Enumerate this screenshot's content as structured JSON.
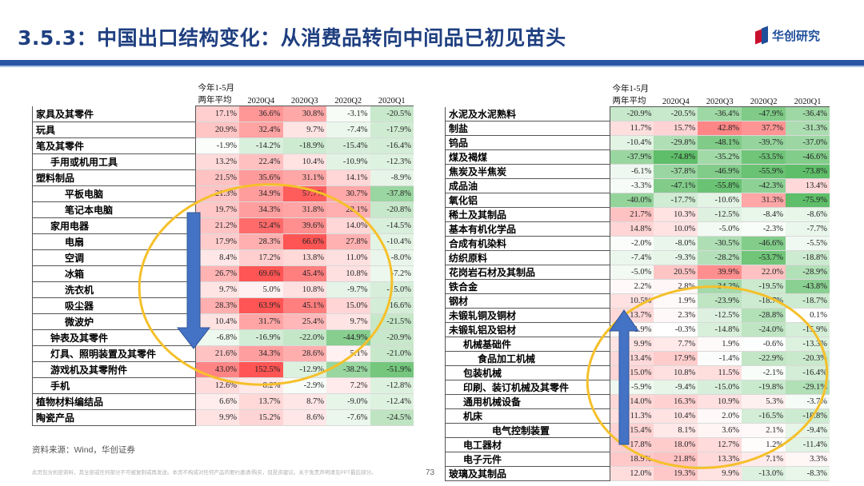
{
  "header": {
    "title": "3.5.3：中国出口结构变化：从消费品转向中间品已初见苗头",
    "logo_text": "华创研究"
  },
  "footer": {
    "source": "资料来源：Wind，华创证券",
    "disclaimer": "此页包含机密资料，其全部或任何部分不可被复制或再发送。本页不构成对任何产品的要约邀请/购买，但投资建议。关于免责声明请见PPT最后部分。",
    "page_number": "73"
  },
  "colors": {
    "title": "#1f3f80",
    "rule": "#2a55a4",
    "red_max": "#f24a4a",
    "green_max": "#56b85c",
    "arrow": "#4472c4",
    "ellipse": "#f5c02a"
  },
  "chart_data": [
    {
      "type": "heatmap",
      "header_row1": "今年1-5月",
      "columns": [
        "两年平均",
        "2020Q4",
        "2020Q3",
        "2020Q2",
        "2020Q1"
      ],
      "rows": [
        {
          "name": "家具及其零件",
          "indent": 0,
          "values": [
            17.1,
            36.6,
            30.8,
            -3.1,
            -20.5
          ]
        },
        {
          "name": "玩具",
          "indent": 0,
          "values": [
            20.9,
            32.4,
            9.7,
            -7.4,
            -17.9
          ]
        },
        {
          "name": "笔及其零件",
          "indent": 0,
          "values": [
            -1.9,
            -14.2,
            -18.9,
            -15.4,
            -16.4
          ]
        },
        {
          "name": "手用或机用工具",
          "indent": 1,
          "values": [
            13.2,
            22.4,
            10.4,
            -10.9,
            -12.3
          ]
        },
        {
          "name": "塑料制品",
          "indent": 0,
          "values": [
            21.5,
            35.6,
            31.1,
            14.1,
            -8.9
          ]
        },
        {
          "name": "平板电脑",
          "indent": 2,
          "values": [
            21.3,
            34.9,
            57.7,
            30.7,
            -37.8
          ]
        },
        {
          "name": "笔记本电脑",
          "indent": 2,
          "values": [
            19.7,
            34.3,
            31.8,
            28.1,
            -20.8
          ]
        },
        {
          "name": "家用电器",
          "indent": 1,
          "values": [
            21.2,
            52.4,
            39.6,
            14.0,
            -14.5
          ]
        },
        {
          "name": "电扇",
          "indent": 2,
          "values": [
            17.9,
            28.3,
            66.6,
            27.8,
            -10.4
          ]
        },
        {
          "name": "空调",
          "indent": 2,
          "values": [
            8.4,
            17.2,
            13.8,
            11.0,
            -8.0
          ]
        },
        {
          "name": "冰箱",
          "indent": 2,
          "values": [
            26.7,
            69.6,
            45.4,
            10.8,
            -7.2
          ]
        },
        {
          "name": "洗衣机",
          "indent": 2,
          "values": [
            9.7,
            5.0,
            10.8,
            -9.7,
            -15.0
          ]
        },
        {
          "name": "吸尘器",
          "indent": 2,
          "values": [
            28.3,
            63.9,
            45.1,
            15.0,
            -16.6
          ]
        },
        {
          "name": "微波炉",
          "indent": 2,
          "values": [
            10.4,
            31.7,
            25.4,
            9.7,
            -21.5
          ]
        },
        {
          "name": "钟表及其零件",
          "indent": 1,
          "values": [
            -6.8,
            -16.9,
            -22.0,
            -44.9,
            -20.9
          ]
        },
        {
          "name": "灯具、照明装置及其零件",
          "indent": 1,
          "values": [
            21.6,
            34.3,
            28.6,
            5.1,
            -21.0
          ]
        },
        {
          "name": "游戏机及其零附件",
          "indent": 1,
          "values": [
            43.0,
            152.5,
            -12.9,
            -38.2,
            -51.9
          ]
        },
        {
          "name": "手机",
          "indent": 1,
          "values": [
            12.6,
            8.2,
            -2.9,
            7.2,
            -12.8
          ]
        },
        {
          "name": "植物材料编结品",
          "indent": 0,
          "values": [
            6.6,
            13.7,
            8.7,
            -9.0,
            -12.4
          ]
        },
        {
          "name": "陶瓷产品",
          "indent": 0,
          "values": [
            9.9,
            15.2,
            8.6,
            -7.6,
            -24.5
          ]
        }
      ]
    },
    {
      "type": "heatmap",
      "header_row1": "今年1-5月",
      "columns": [
        "两年平均",
        "2020Q4",
        "2020Q3",
        "2020Q2",
        "2020Q1"
      ],
      "rows": [
        {
          "name": "水泥及水泥熟料",
          "indent": 0,
          "values": [
            -20.9,
            -20.5,
            -36.4,
            -47.9,
            -36.4
          ]
        },
        {
          "name": "制盐",
          "indent": 0,
          "values": [
            11.7,
            15.7,
            42.8,
            37.7,
            -31.3
          ]
        },
        {
          "name": "钨品",
          "indent": 0,
          "values": [
            -10.4,
            -29.8,
            -48.1,
            -39.7,
            -37.0
          ]
        },
        {
          "name": "煤及褐煤",
          "indent": 0,
          "values": [
            -37.9,
            -74.8,
            -35.2,
            -53.5,
            -46.6
          ]
        },
        {
          "name": "焦炭及半焦炭",
          "indent": 0,
          "values": [
            -6.1,
            -37.8,
            -46.9,
            -55.9,
            -73.8
          ]
        },
        {
          "name": "成品油",
          "indent": 0,
          "values": [
            -3.3,
            -47.1,
            -55.8,
            -42.3,
            13.4
          ]
        },
        {
          "name": "氧化铝",
          "indent": 0,
          "values": [
            -40.0,
            -17.7,
            -10.6,
            31.3,
            -75.9
          ]
        },
        {
          "name": "稀土及其制品",
          "indent": 0,
          "values": [
            21.7,
            10.3,
            -12.5,
            -8.4,
            -8.6
          ]
        },
        {
          "name": "基本有机化学品",
          "indent": 0,
          "values": [
            14.8,
            10.0,
            -5.0,
            -2.3,
            -7.7
          ]
        },
        {
          "name": "合成有机染料",
          "indent": 0,
          "values": [
            -2.0,
            -8.0,
            -30.5,
            -46.6,
            -5.5
          ]
        },
        {
          "name": "纺织原料",
          "indent": 0,
          "values": [
            -7.4,
            -9.3,
            -28.2,
            -53.7,
            -18.8
          ]
        },
        {
          "name": "花岗岩石材及其制品",
          "indent": 0,
          "values": [
            -5.0,
            20.5,
            39.9,
            22.0,
            -28.9
          ]
        },
        {
          "name": "铁合金",
          "indent": 0,
          "values": [
            2.2,
            2.8,
            -34.2,
            -19.5,
            -43.8
          ]
        },
        {
          "name": "钢材",
          "indent": 0,
          "values": [
            10.5,
            1.9,
            -23.9,
            -18.7,
            -18.7
          ]
        },
        {
          "name": "未锻轧铜及铜材",
          "indent": 0,
          "values": [
            13.7,
            2.3,
            -12.5,
            -28.8,
            0.1
          ]
        },
        {
          "name": "未锻轧铝及铝材",
          "indent": 0,
          "values": [
            1.9,
            -0.3,
            -14.8,
            -24.0,
            -15.9
          ]
        },
        {
          "name": "机械基础件",
          "indent": 1,
          "values": [
            9.9,
            7.7,
            1.9,
            -0.6,
            -13.3
          ]
        },
        {
          "name": "食品加工机械",
          "indent": 2,
          "values": [
            13.4,
            17.9,
            -1.4,
            -22.9,
            -20.3
          ]
        },
        {
          "name": "包装机械",
          "indent": 1,
          "values": [
            15.0,
            10.8,
            11.5,
            -2.1,
            -16.4
          ]
        },
        {
          "name": "印刷、装订机械及其零件",
          "indent": 1,
          "values": [
            -5.9,
            -9.4,
            -15.0,
            -19.8,
            -29.1
          ]
        },
        {
          "name": "通用机械设备",
          "indent": 1,
          "values": [
            14.0,
            16.3,
            10.9,
            5.3,
            -3.7
          ]
        },
        {
          "name": "机床",
          "indent": 1,
          "values": [
            11.3,
            10.4,
            2.0,
            -16.5,
            -18.8
          ]
        },
        {
          "name": "电气控制装置",
          "indent": 3,
          "values": [
            15.4,
            8.1,
            3.6,
            2.1,
            -9.4
          ]
        },
        {
          "name": "电工器材",
          "indent": 1,
          "values": [
            17.8,
            18.0,
            12.7,
            1.2,
            -11.4
          ]
        },
        {
          "name": "电子元件",
          "indent": 1,
          "values": [
            18.9,
            21.8,
            13.3,
            7.1,
            3.3
          ]
        },
        {
          "name": "玻璃及其制品",
          "indent": 0,
          "values": [
            12.0,
            19.3,
            9.9,
            -13.0,
            -8.3
          ]
        }
      ]
    }
  ]
}
